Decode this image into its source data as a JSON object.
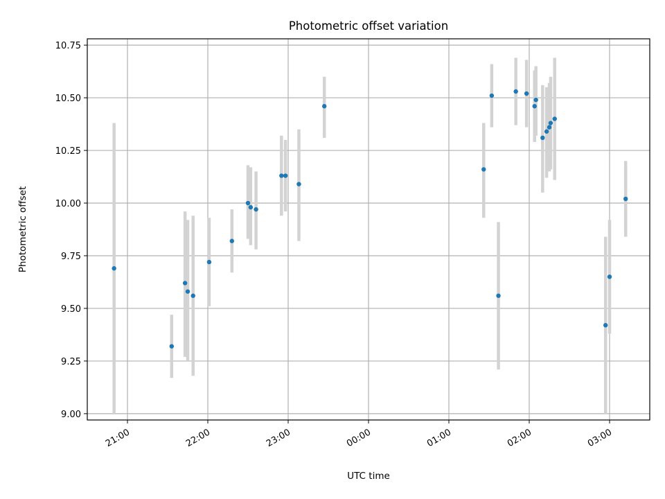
{
  "chart_data": {
    "type": "scatter",
    "title": "Photometric offset variation",
    "xlabel": "UTC time",
    "ylabel": "Photometric offset",
    "x_axis": "time (HH:MM UTC, crossing midnight)",
    "xlim": [
      "20:30",
      "03:30"
    ],
    "ylim": [
      8.97,
      10.78
    ],
    "x_ticks": [
      "21:00",
      "22:00",
      "23:00",
      "00:00",
      "01:00",
      "02:00",
      "03:00"
    ],
    "y_ticks": [
      "9.00",
      "9.25",
      "9.50",
      "9.75",
      "10.00",
      "10.25",
      "10.50",
      "10.75"
    ],
    "grid": true,
    "colors": {
      "point": "#1f77b4",
      "errorbar": "#d3d3d3"
    },
    "points": [
      {
        "x": "20:50",
        "y": 9.69,
        "low": 9.0,
        "high": 10.38
      },
      {
        "x": "21:33",
        "y": 9.32,
        "low": 9.17,
        "high": 9.47
      },
      {
        "x": "21:43",
        "y": 9.62,
        "low": 9.27,
        "high": 9.96
      },
      {
        "x": "21:45",
        "y": 9.58,
        "low": 9.25,
        "high": 9.92
      },
      {
        "x": "21:49",
        "y": 9.56,
        "low": 9.18,
        "high": 9.94
      },
      {
        "x": "22:01",
        "y": 9.72,
        "low": 9.51,
        "high": 9.93
      },
      {
        "x": "22:18",
        "y": 9.82,
        "low": 9.67,
        "high": 9.97
      },
      {
        "x": "22:30",
        "y": 10.0,
        "low": 9.83,
        "high": 10.18
      },
      {
        "x": "22:32",
        "y": 9.98,
        "low": 9.8,
        "high": 10.17
      },
      {
        "x": "22:36",
        "y": 9.97,
        "low": 9.78,
        "high": 10.15
      },
      {
        "x": "22:55",
        "y": 10.13,
        "low": 9.94,
        "high": 10.32
      },
      {
        "x": "22:58",
        "y": 10.13,
        "low": 9.96,
        "high": 10.3
      },
      {
        "x": "23:08",
        "y": 10.09,
        "low": 9.82,
        "high": 10.35
      },
      {
        "x": "23:27",
        "y": 10.46,
        "low": 10.31,
        "high": 10.6
      },
      {
        "x": "01:26",
        "y": 10.16,
        "low": 9.93,
        "high": 10.38
      },
      {
        "x": "01:32",
        "y": 10.51,
        "low": 10.36,
        "high": 10.66
      },
      {
        "x": "01:37",
        "y": 9.56,
        "low": 9.21,
        "high": 9.91
      },
      {
        "x": "01:50",
        "y": 10.53,
        "low": 10.37,
        "high": 10.69
      },
      {
        "x": "01:58",
        "y": 10.52,
        "low": 10.36,
        "high": 10.68
      },
      {
        "x": "02:04",
        "y": 10.46,
        "low": 10.29,
        "high": 10.63
      },
      {
        "x": "02:05",
        "y": 10.49,
        "low": 10.32,
        "high": 10.65
      },
      {
        "x": "02:10",
        "y": 10.31,
        "low": 10.05,
        "high": 10.56
      },
      {
        "x": "02:13",
        "y": 10.34,
        "low": 10.12,
        "high": 10.55
      },
      {
        "x": "02:15",
        "y": 10.36,
        "low": 10.15,
        "high": 10.57
      },
      {
        "x": "02:16",
        "y": 10.38,
        "low": 10.16,
        "high": 10.6
      },
      {
        "x": "02:19",
        "y": 10.4,
        "low": 10.11,
        "high": 10.69
      },
      {
        "x": "02:57",
        "y": 9.42,
        "low": 9.0,
        "high": 9.84
      },
      {
        "x": "03:00",
        "y": 9.65,
        "low": 9.38,
        "high": 9.92
      },
      {
        "x": "03:12",
        "y": 10.02,
        "low": 9.84,
        "high": 10.2
      }
    ]
  }
}
